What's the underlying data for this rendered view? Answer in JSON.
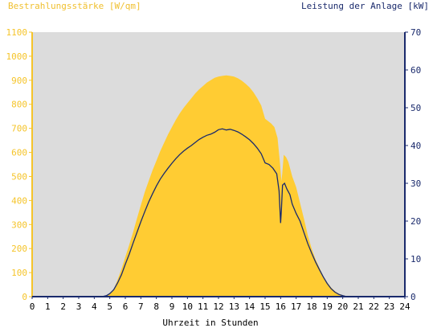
{
  "chart_data": {
    "type": "area",
    "title_left": "Bestrahlungsstärke [W/qm]",
    "title_right": "Leistung der Anlage [kW]",
    "xlabel": "Uhrzeit in Stunden",
    "x_range": [
      0,
      24
    ],
    "x_ticks": [
      "0",
      "1",
      "2",
      "3",
      "4",
      "5",
      "6",
      "7",
      "8",
      "9",
      "10",
      "11",
      "12",
      "13",
      "14",
      "15",
      "16",
      "17",
      "18",
      "19",
      "20",
      "21",
      "22",
      "23",
      "24"
    ],
    "y_left_range": [
      0,
      1100
    ],
    "y_left_ticks": [
      "0",
      "100",
      "200",
      "300",
      "400",
      "500",
      "600",
      "700",
      "800",
      "900",
      "1000",
      "1100"
    ],
    "y_right_range": [
      0,
      70
    ],
    "y_right_ticks": [
      "0",
      "10",
      "20",
      "30",
      "40",
      "50",
      "60",
      "70"
    ],
    "grid": false,
    "colors": {
      "irradiance": "#ffcc33",
      "power": "#1a2a6c",
      "plot_bg": "#dcdcdc",
      "left_axis": "#f5c42a",
      "right_axis": "#1a2a6c"
    },
    "series": [
      {
        "name": "Bestrahlungsstärke",
        "axis": "left",
        "points": [
          [
            0,
            0
          ],
          [
            4.5,
            0
          ],
          [
            4.8,
            3
          ],
          [
            5,
            12
          ],
          [
            5.25,
            30
          ],
          [
            5.5,
            70
          ],
          [
            5.75,
            115
          ],
          [
            6,
            165
          ],
          [
            6.25,
            215
          ],
          [
            6.5,
            268
          ],
          [
            6.75,
            325
          ],
          [
            7,
            380
          ],
          [
            7.25,
            435
          ],
          [
            7.5,
            480
          ],
          [
            7.75,
            525
          ],
          [
            8,
            565
          ],
          [
            8.25,
            605
          ],
          [
            8.5,
            640
          ],
          [
            8.75,
            675
          ],
          [
            9,
            705
          ],
          [
            9.25,
            735
          ],
          [
            9.5,
            762
          ],
          [
            9.75,
            785
          ],
          [
            10,
            805
          ],
          [
            10.25,
            825
          ],
          [
            10.5,
            845
          ],
          [
            10.75,
            862
          ],
          [
            11,
            876
          ],
          [
            11.25,
            890
          ],
          [
            11.5,
            900
          ],
          [
            11.75,
            910
          ],
          [
            12,
            915
          ],
          [
            12.25,
            918
          ],
          [
            12.5,
            920
          ],
          [
            12.75,
            918
          ],
          [
            13,
            915
          ],
          [
            13.25,
            908
          ],
          [
            13.5,
            898
          ],
          [
            13.75,
            885
          ],
          [
            14,
            870
          ],
          [
            14.25,
            850
          ],
          [
            14.5,
            825
          ],
          [
            14.75,
            795
          ],
          [
            15,
            740
          ],
          [
            15.2,
            730
          ],
          [
            15.4,
            720
          ],
          [
            15.6,
            705
          ],
          [
            15.8,
            660
          ],
          [
            15.95,
            560
          ],
          [
            16.05,
            480
          ],
          [
            16.1,
            510
          ],
          [
            16.2,
            590
          ],
          [
            16.35,
            580
          ],
          [
            16.5,
            560
          ],
          [
            16.75,
            500
          ],
          [
            17,
            455
          ],
          [
            17.25,
            390
          ],
          [
            17.5,
            325
          ],
          [
            17.75,
            255
          ],
          [
            18,
            200
          ],
          [
            18.25,
            155
          ],
          [
            18.5,
            120
          ],
          [
            18.75,
            85
          ],
          [
            19,
            60
          ],
          [
            19.25,
            38
          ],
          [
            19.5,
            22
          ],
          [
            19.75,
            12
          ],
          [
            20,
            6
          ],
          [
            20.25,
            2
          ],
          [
            20.5,
            0
          ],
          [
            24,
            0
          ]
        ]
      },
      {
        "name": "Leistung der Anlage",
        "axis": "right",
        "points": [
          [
            0,
            0
          ],
          [
            4.5,
            0
          ],
          [
            4.8,
            0.3
          ],
          [
            5,
            0.8
          ],
          [
            5.25,
            1.8
          ],
          [
            5.5,
            3.6
          ],
          [
            5.75,
            5.8
          ],
          [
            6,
            8.6
          ],
          [
            6.25,
            11.2
          ],
          [
            6.5,
            14.2
          ],
          [
            6.75,
            17
          ],
          [
            7,
            19.8
          ],
          [
            7.25,
            22.5
          ],
          [
            7.5,
            25
          ],
          [
            7.75,
            27.2
          ],
          [
            8,
            29.3
          ],
          [
            8.25,
            31.1
          ],
          [
            8.5,
            32.6
          ],
          [
            8.75,
            34
          ],
          [
            9,
            35.3
          ],
          [
            9.25,
            36.5
          ],
          [
            9.5,
            37.6
          ],
          [
            9.75,
            38.5
          ],
          [
            10,
            39.3
          ],
          [
            10.25,
            40
          ],
          [
            10.5,
            40.8
          ],
          [
            10.75,
            41.6
          ],
          [
            11,
            42.2
          ],
          [
            11.25,
            42.7
          ],
          [
            11.5,
            43
          ],
          [
            11.75,
            43.5
          ],
          [
            12,
            44.2
          ],
          [
            12.25,
            44.4
          ],
          [
            12.5,
            44.1
          ],
          [
            12.75,
            44.3
          ],
          [
            13,
            44
          ],
          [
            13.25,
            43.6
          ],
          [
            13.5,
            43
          ],
          [
            13.75,
            42.3
          ],
          [
            14,
            41.5
          ],
          [
            14.25,
            40.5
          ],
          [
            14.5,
            39.3
          ],
          [
            14.75,
            37.8
          ],
          [
            15,
            35.4
          ],
          [
            15.25,
            35
          ],
          [
            15.5,
            34
          ],
          [
            15.75,
            32.5
          ],
          [
            15.9,
            28
          ],
          [
            16,
            19.5
          ],
          [
            16.05,
            23
          ],
          [
            16.12,
            29.5
          ],
          [
            16.25,
            30
          ],
          [
            16.4,
            28.5
          ],
          [
            16.6,
            27
          ],
          [
            16.75,
            24.5
          ],
          [
            17,
            22
          ],
          [
            17.25,
            20
          ],
          [
            17.5,
            17
          ],
          [
            17.75,
            14
          ],
          [
            18,
            11.5
          ],
          [
            18.25,
            9.2
          ],
          [
            18.5,
            7.1
          ],
          [
            18.75,
            5.2
          ],
          [
            19,
            3.5
          ],
          [
            19.25,
            2.1
          ],
          [
            19.5,
            1.2
          ],
          [
            19.75,
            0.6
          ],
          [
            20,
            0.25
          ],
          [
            20.25,
            0
          ],
          [
            24,
            0
          ]
        ]
      }
    ]
  }
}
